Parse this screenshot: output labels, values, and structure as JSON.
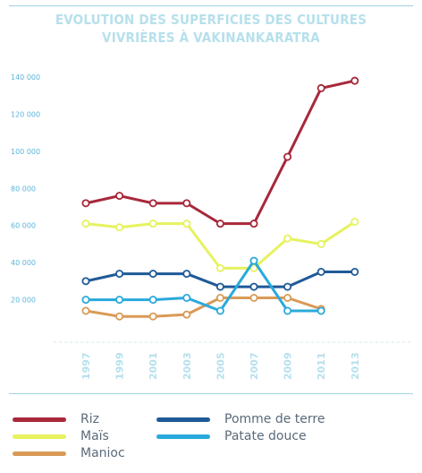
{
  "chart_data": {
    "type": "line",
    "title": "EVOLUTION DES SUPERFICIES DES CULTURES VIVRIÈRES À VAKINANKARATRA",
    "title_lines": [
      "EVOLUTION DES SUPERFICIES DES CULTURES",
      "VIVRIÈRES À VAKINANKARATRA"
    ],
    "x": [
      "1997",
      "1999",
      "2001",
      "2003",
      "2005",
      "2007",
      "2009",
      "2011",
      "2013"
    ],
    "y_ticks": [
      "20 000",
      "40 000",
      "60 000",
      "80 000",
      "100 000",
      "120 000",
      "140 000"
    ],
    "ylim": [
      0,
      140000
    ],
    "grid": false,
    "legend_position": "bottom",
    "series": [
      {
        "name": "Riz",
        "color": "#a8283a",
        "values": [
          72000,
          76000,
          72000,
          72000,
          61000,
          61000,
          97000,
          134000,
          138000
        ]
      },
      {
        "name": "Maïs",
        "color": "#e6f25e",
        "values": [
          61000,
          59000,
          61000,
          61000,
          37000,
          37000,
          53000,
          50000,
          62000
        ]
      },
      {
        "name": "Manioc",
        "color": "#d99a56",
        "values": [
          14000,
          11000,
          11000,
          12000,
          21000,
          21000,
          21000,
          15000,
          null
        ]
      },
      {
        "name": "Pomme de terre",
        "color": "#1f5a98",
        "values": [
          30000,
          34000,
          34000,
          34000,
          27000,
          27000,
          27000,
          35000,
          35000
        ]
      },
      {
        "name": "Patate douce",
        "color": "#2aa9dc",
        "values": [
          20000,
          20000,
          20000,
          21000,
          14000,
          41000,
          14000,
          14000,
          null
        ]
      }
    ]
  }
}
